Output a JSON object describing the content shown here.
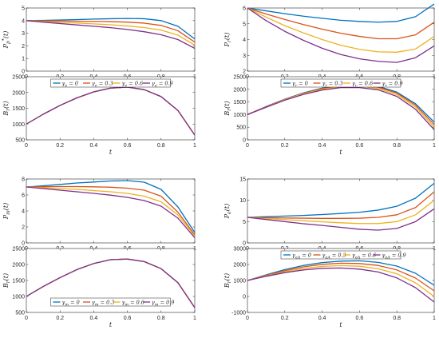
{
  "colors": [
    "#0072BD",
    "#D95319",
    "#EDB120",
    "#7E2F8E"
  ],
  "x_ticks": [
    "0",
    "0.2",
    "0.4",
    "0.6",
    "0.8",
    "1"
  ],
  "chart_data": [
    {
      "type": "line",
      "ylabel": "P_p^*(t)",
      "xlabel": "",
      "ylim": [
        0,
        5
      ],
      "yticks": [
        "0",
        "1",
        "2",
        "3",
        "4",
        "5"
      ],
      "x": [
        0,
        0.1,
        0.2,
        0.3,
        0.4,
        0.5,
        0.6,
        0.7,
        0.8,
        0.9,
        1
      ],
      "series": [
        {
          "values": [
            4.0,
            4.02,
            4.05,
            4.08,
            4.12,
            4.15,
            4.17,
            4.15,
            4.0,
            3.55,
            2.55
          ]
        },
        {
          "values": [
            4.0,
            3.98,
            3.97,
            3.95,
            3.94,
            3.92,
            3.88,
            3.8,
            3.62,
            3.2,
            2.3
          ]
        },
        {
          "values": [
            4.0,
            3.93,
            3.87,
            3.81,
            3.74,
            3.67,
            3.58,
            3.45,
            3.25,
            2.85,
            2.05
          ]
        },
        {
          "values": [
            4.0,
            3.88,
            3.77,
            3.66,
            3.55,
            3.44,
            3.3,
            3.12,
            2.88,
            2.5,
            1.8
          ]
        }
      ]
    },
    {
      "type": "line",
      "ylabel": "B_r(t)",
      "xlabel": "t",
      "ylim": [
        500,
        2500
      ],
      "yticks": [
        "500",
        "1000",
        "1500",
        "2000",
        "2500"
      ],
      "x": [
        0,
        0.1,
        0.2,
        0.3,
        0.4,
        0.5,
        0.6,
        0.7,
        0.8,
        0.9,
        1
      ],
      "legend": {
        "position": "top-center",
        "entries": [
          "γ_e = 0",
          "γ_e = 0.3",
          "γ_e = 0.6",
          "γ_e = 0.9"
        ]
      },
      "series": [
        {
          "values": [
            1000,
            1310,
            1590,
            1830,
            2020,
            2140,
            2170,
            2090,
            1870,
            1430,
            650
          ]
        },
        {
          "values": [
            1000,
            1310,
            1590,
            1830,
            2020,
            2140,
            2170,
            2090,
            1870,
            1430,
            650
          ]
        },
        {
          "values": [
            1000,
            1310,
            1590,
            1830,
            2020,
            2140,
            2170,
            2090,
            1870,
            1430,
            650
          ]
        },
        {
          "values": [
            1000,
            1310,
            1590,
            1830,
            2020,
            2140,
            2170,
            2090,
            1870,
            1430,
            650
          ]
        }
      ]
    },
    {
      "type": "line",
      "ylabel": "P_r(t)",
      "xlabel": "",
      "ylim": [
        2,
        6
      ],
      "yticks": [
        "2",
        "3",
        "4",
        "5",
        "6"
      ],
      "x": [
        0,
        0.1,
        0.2,
        0.3,
        0.4,
        0.5,
        0.6,
        0.7,
        0.8,
        0.9,
        1
      ],
      "series": [
        {
          "values": [
            6.0,
            5.82,
            5.64,
            5.48,
            5.35,
            5.22,
            5.15,
            5.1,
            5.15,
            5.45,
            6.25
          ]
        },
        {
          "values": [
            6.0,
            5.62,
            5.27,
            4.95,
            4.66,
            4.4,
            4.2,
            4.05,
            4.05,
            4.3,
            5.1
          ]
        },
        {
          "values": [
            6.0,
            5.42,
            4.88,
            4.42,
            4.0,
            3.64,
            3.38,
            3.22,
            3.2,
            3.4,
            4.2
          ]
        },
        {
          "values": [
            6.0,
            5.2,
            4.52,
            3.95,
            3.45,
            3.05,
            2.78,
            2.62,
            2.55,
            2.85,
            3.6
          ]
        }
      ]
    },
    {
      "type": "line",
      "ylabel": "B_r(t)",
      "xlabel": "t",
      "ylim": [
        0,
        2500
      ],
      "yticks": [
        "0",
        "500",
        "1000",
        "1500",
        "2000",
        "2500"
      ],
      "x": [
        0,
        0.1,
        0.2,
        0.3,
        0.4,
        0.5,
        0.6,
        0.7,
        0.8,
        0.9,
        1
      ],
      "legend": {
        "position": "top-center",
        "entries": [
          "γ_r = 0",
          "γ_r = 0.3",
          "γ_r = 0.6",
          "γ_r = 0.9"
        ]
      },
      "series": [
        {
          "values": [
            1000,
            1320,
            1610,
            1860,
            2050,
            2170,
            2190,
            2120,
            1890,
            1430,
            700
          ]
        },
        {
          "values": [
            1000,
            1310,
            1600,
            1840,
            2030,
            2140,
            2160,
            2080,
            1850,
            1370,
            600
          ]
        },
        {
          "values": [
            1000,
            1300,
            1590,
            1830,
            2000,
            2110,
            2120,
            2030,
            1790,
            1300,
            500
          ]
        },
        {
          "values": [
            1000,
            1290,
            1570,
            1800,
            1970,
            2070,
            2070,
            1980,
            1720,
            1210,
            400
          ]
        }
      ]
    },
    {
      "type": "line",
      "ylabel": "P_m(t)",
      "xlabel": "",
      "ylim": [
        0,
        8
      ],
      "yticks": [
        "0",
        "2",
        "4",
        "6",
        "8"
      ],
      "x": [
        0,
        0.1,
        0.2,
        0.3,
        0.4,
        0.5,
        0.6,
        0.7,
        0.8,
        0.9,
        1
      ],
      "series": [
        {
          "values": [
            7.0,
            7.15,
            7.32,
            7.5,
            7.62,
            7.75,
            7.8,
            7.6,
            6.7,
            4.5,
            1.3
          ]
        },
        {
          "values": [
            7.0,
            7.03,
            7.05,
            7.05,
            7.02,
            6.97,
            6.85,
            6.6,
            5.85,
            3.85,
            1.0
          ]
        },
        {
          "values": [
            7.0,
            6.9,
            6.8,
            6.7,
            6.55,
            6.4,
            6.2,
            5.85,
            5.15,
            3.5,
            0.85
          ]
        },
        {
          "values": [
            7.0,
            6.8,
            6.6,
            6.4,
            6.2,
            5.98,
            5.7,
            5.3,
            4.6,
            3.1,
            0.65
          ]
        }
      ]
    },
    {
      "type": "line",
      "ylabel": "B_r(t)",
      "xlabel": "t",
      "ylim": [
        500,
        2500
      ],
      "yticks": [
        "500",
        "1000",
        "1500",
        "2000",
        "2500"
      ],
      "x": [
        0,
        0.1,
        0.2,
        0.3,
        0.4,
        0.5,
        0.6,
        0.7,
        0.8,
        0.9,
        1
      ],
      "legend": {
        "position": "bottom-center",
        "entries": [
          "γ_m = 0",
          "γ_m = 0.3",
          "γ_m = 0.6",
          "γ_m = 0.9"
        ]
      },
      "series": [
        {
          "values": [
            1000,
            1310,
            1590,
            1840,
            2030,
            2150,
            2170,
            2090,
            1870,
            1430,
            650
          ]
        },
        {
          "values": [
            1000,
            1310,
            1590,
            1840,
            2030,
            2150,
            2170,
            2090,
            1870,
            1430,
            650
          ]
        },
        {
          "values": [
            1000,
            1310,
            1590,
            1840,
            2030,
            2150,
            2170,
            2090,
            1870,
            1430,
            650
          ]
        },
        {
          "values": [
            1000,
            1310,
            1590,
            1840,
            2030,
            2150,
            2170,
            2090,
            1870,
            1430,
            650
          ]
        }
      ]
    },
    {
      "type": "line",
      "ylabel": "P_e(t)",
      "xlabel": "",
      "ylim": [
        0,
        15
      ],
      "yticks": [
        "0",
        "5",
        "10",
        "15"
      ],
      "x": [
        0,
        0.1,
        0.2,
        0.3,
        0.4,
        0.5,
        0.6,
        0.7,
        0.8,
        0.9,
        1
      ],
      "series": [
        {
          "values": [
            6.0,
            6.15,
            6.3,
            6.45,
            6.65,
            6.9,
            7.2,
            7.7,
            8.6,
            10.5,
            14.0
          ]
        },
        {
          "values": [
            6.0,
            5.9,
            5.85,
            5.8,
            5.75,
            5.75,
            5.8,
            6.0,
            6.6,
            8.3,
            12.0
          ]
        },
        {
          "values": [
            6.0,
            5.72,
            5.48,
            5.2,
            4.95,
            4.72,
            4.55,
            4.55,
            5.0,
            6.6,
            10.0
          ]
        },
        {
          "values": [
            6.0,
            5.5,
            5.0,
            4.5,
            4.1,
            3.65,
            3.2,
            3.0,
            3.4,
            5.0,
            8.0
          ]
        }
      ]
    },
    {
      "type": "line",
      "ylabel": "B_r(t)",
      "xlabel": "t",
      "ylim": [
        -1000,
        3000
      ],
      "yticks": [
        "-1000",
        "0",
        "1000",
        "2000",
        "3000"
      ],
      "x": [
        0,
        0.1,
        0.2,
        0.3,
        0.4,
        0.5,
        0.6,
        0.7,
        0.8,
        0.9,
        1
      ],
      "legend": {
        "position": "top-center",
        "entries": [
          "γ_eA = 0",
          "γ_eA = 0.3",
          "γ_eA = 0.6",
          "γ_eA = 0.9"
        ]
      },
      "series": [
        {
          "values": [
            1000,
            1350,
            1680,
            1940,
            2120,
            2210,
            2230,
            2130,
            1900,
            1450,
            700
          ]
        },
        {
          "values": [
            1000,
            1320,
            1610,
            1850,
            2010,
            2080,
            2060,
            1940,
            1660,
            1150,
            350
          ]
        },
        {
          "values": [
            1000,
            1290,
            1550,
            1750,
            1880,
            1930,
            1890,
            1730,
            1420,
            850,
            0
          ]
        },
        {
          "values": [
            1000,
            1260,
            1490,
            1660,
            1760,
            1780,
            1710,
            1530,
            1160,
            550,
            -350
          ]
        }
      ]
    }
  ]
}
